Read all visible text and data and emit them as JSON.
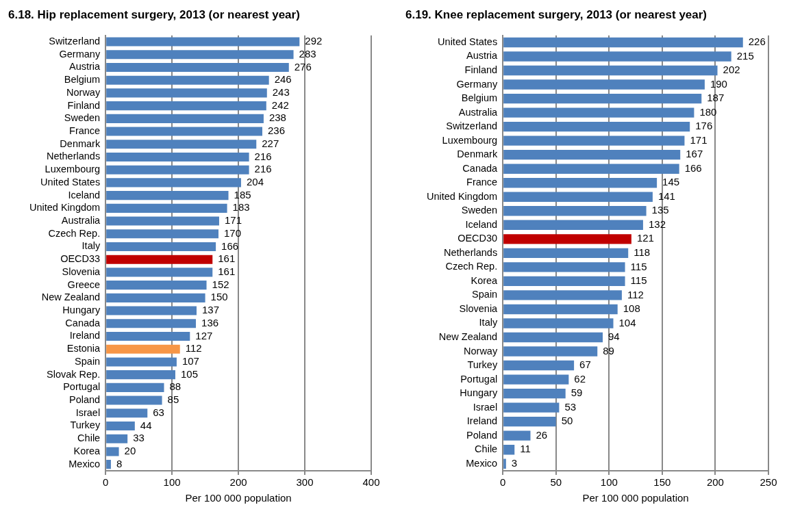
{
  "chart_data": [
    {
      "type": "bar",
      "orientation": "horizontal",
      "title": "6.18. Hip replacement surgery, 2013 (or nearest year)",
      "xlabel": "Per 100 000 population",
      "categories": [
        "Switzerland",
        "Germany",
        "Austria",
        "Belgium",
        "Norway",
        "Finland",
        "Sweden",
        "France",
        "Denmark",
        "Netherlands",
        "Luxembourg",
        "United States",
        "Iceland",
        "United Kingdom",
        "Australia",
        "Czech Rep.",
        "Italy",
        "OECD33",
        "Slovenia",
        "Greece",
        "New Zealand",
        "Hungary",
        "Canada",
        "Ireland",
        "Estonia",
        "Spain",
        "Slovak Rep.",
        "Portugal",
        "Poland",
        "Israel",
        "Turkey",
        "Chile",
        "Korea",
        "Mexico"
      ],
      "values": [
        292,
        283,
        276,
        246,
        243,
        242,
        238,
        236,
        227,
        216,
        216,
        204,
        185,
        183,
        171,
        170,
        166,
        161,
        161,
        152,
        150,
        137,
        136,
        127,
        112,
        107,
        105,
        88,
        85,
        63,
        44,
        33,
        20,
        8
      ],
      "colors": [
        "#4f81bd",
        "#4f81bd",
        "#4f81bd",
        "#4f81bd",
        "#4f81bd",
        "#4f81bd",
        "#4f81bd",
        "#4f81bd",
        "#4f81bd",
        "#4f81bd",
        "#4f81bd",
        "#4f81bd",
        "#4f81bd",
        "#4f81bd",
        "#4f81bd",
        "#4f81bd",
        "#4f81bd",
        "#c00000",
        "#4f81bd",
        "#4f81bd",
        "#4f81bd",
        "#4f81bd",
        "#4f81bd",
        "#4f81bd",
        "#f79646",
        "#4f81bd",
        "#4f81bd",
        "#4f81bd",
        "#4f81bd",
        "#4f81bd",
        "#4f81bd",
        "#4f81bd",
        "#4f81bd",
        "#4f81bd"
      ],
      "xlim": [
        0,
        400
      ],
      "xticks": [
        0,
        100,
        200,
        300,
        400
      ],
      "grid": "x",
      "data_labels": true,
      "legend": false
    },
    {
      "type": "bar",
      "orientation": "horizontal",
      "title": "6.19. Knee replacement surgery, 2013 (or nearest year)",
      "xlabel": "Per 100 000 population",
      "categories": [
        "United States",
        "Austria",
        "Finland",
        "Germany",
        "Belgium",
        "Australia",
        "Switzerland",
        "Luxembourg",
        "Denmark",
        "Canada",
        "France",
        "United Kingdom",
        "Sweden",
        "Iceland",
        "OECD30",
        "Netherlands",
        "Czech Rep.",
        "Korea",
        "Spain",
        "Slovenia",
        "Italy",
        "New Zealand",
        "Norway",
        "Turkey",
        "Portugal",
        "Hungary",
        "Israel",
        "Ireland",
        "Poland",
        "Chile",
        "Mexico"
      ],
      "values": [
        226,
        215,
        202,
        190,
        187,
        180,
        176,
        171,
        167,
        166,
        145,
        141,
        135,
        132,
        121,
        118,
        115,
        115,
        112,
        108,
        104,
        94,
        89,
        67,
        62,
        59,
        53,
        50,
        26,
        11,
        3
      ],
      "colors": [
        "#4f81bd",
        "#4f81bd",
        "#4f81bd",
        "#4f81bd",
        "#4f81bd",
        "#4f81bd",
        "#4f81bd",
        "#4f81bd",
        "#4f81bd",
        "#4f81bd",
        "#4f81bd",
        "#4f81bd",
        "#4f81bd",
        "#4f81bd",
        "#c00000",
        "#4f81bd",
        "#4f81bd",
        "#4f81bd",
        "#4f81bd",
        "#4f81bd",
        "#4f81bd",
        "#4f81bd",
        "#4f81bd",
        "#4f81bd",
        "#4f81bd",
        "#4f81bd",
        "#4f81bd",
        "#4f81bd",
        "#4f81bd",
        "#4f81bd",
        "#4f81bd"
      ],
      "xlim": [
        0,
        250
      ],
      "xticks": [
        0,
        50,
        100,
        150,
        200,
        250
      ],
      "grid": "x",
      "data_labels": true,
      "legend": false
    }
  ]
}
